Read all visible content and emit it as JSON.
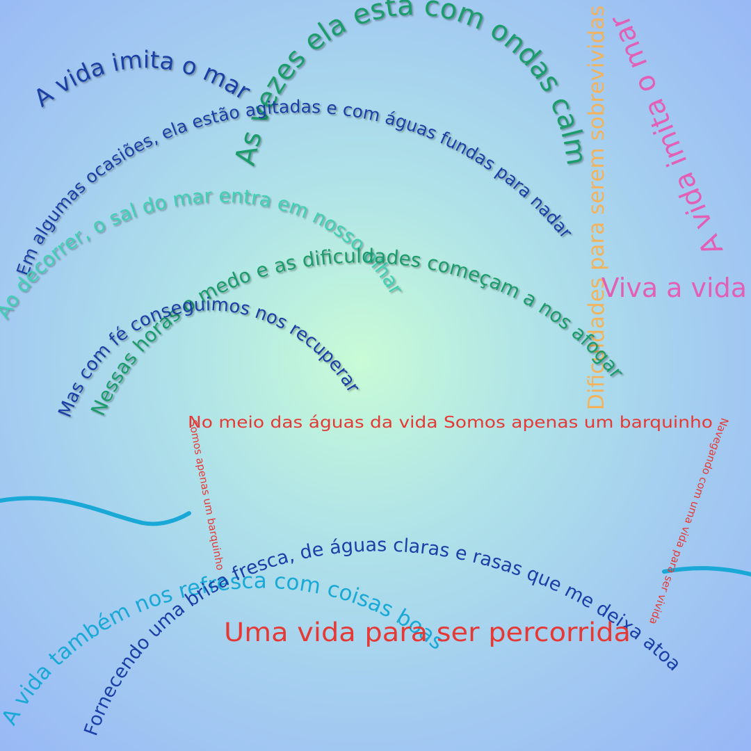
{
  "colors": {
    "blue": "#1a3fa6",
    "green": "#1a9c6b",
    "teal": "#3fd0b5",
    "cyan": "#1aa9d6",
    "red": "#e53935",
    "pink": "#e25fb5",
    "orange": "#f2b35c",
    "wave": "#1aa9d6"
  },
  "lines": {
    "vida_imita_mar_top": "A vida imita o mar",
    "as_vezes": "As vezes ela está com ondas calma",
    "dificuldades": "Dificuldades para serem sobrevividas",
    "vida_imita_mar_right": "A vida imita o mar",
    "em_algumas": "Em algumas ocasiões, ela estão agitadas e com águas fundas para nadar",
    "ao_decorrer": "Ao decorrer, o sal do mar entra em nosso olhar",
    "viva_a_vida": "Viva a vida",
    "nessas_horas": "Nessas horas o medo e as dificuldades começam a nos afogar",
    "mas_com_fe": "Mas com fé conseguimos nos recuperar",
    "no_meio": "No meio das águas da vida  Somos apenas um barquinho",
    "somos_vertical": "Somos apenas um barquinho",
    "navegando": "Navegando com uma vida para ser vivida",
    "fornecendo": "Fornecendo uma brisa fresca, de águas claras e rasas  que me deixa atoa",
    "vida_tambem": "A vida também nos refresca com coisas boas",
    "uma_vida": "Uma vida para ser percorrida"
  }
}
